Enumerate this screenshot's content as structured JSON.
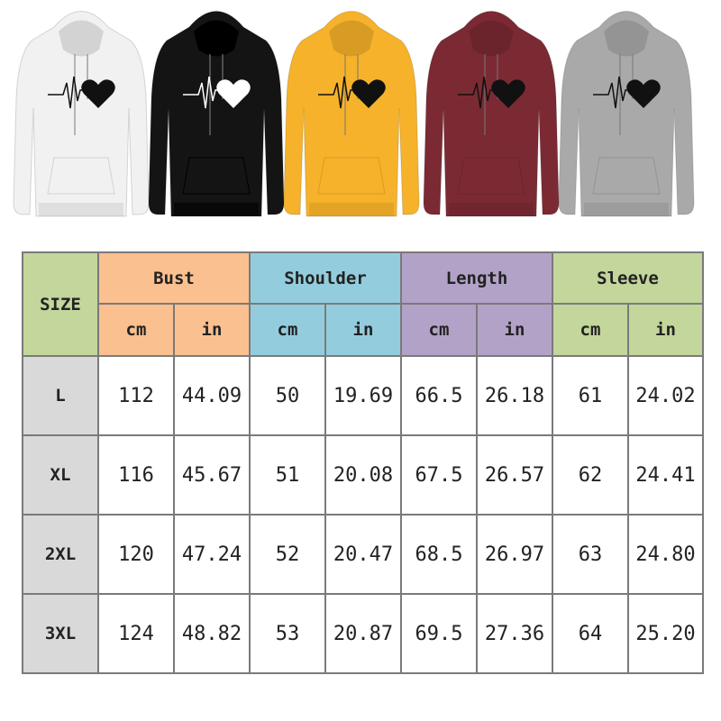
{
  "product_colors": [
    {
      "name": "white",
      "hex": "#f1f1f1",
      "print": "#111111"
    },
    {
      "name": "black",
      "hex": "#141414",
      "print": "#ffffff"
    },
    {
      "name": "yellow",
      "hex": "#f6b22a",
      "print": "#111111"
    },
    {
      "name": "wine-red",
      "hex": "#7b2a33",
      "print": "#111111"
    },
    {
      "name": "gray",
      "hex": "#a9a9a9",
      "print": "#111111"
    }
  ],
  "size_chart": {
    "size_header": "SIZE",
    "groups": [
      {
        "label": "Bust",
        "color": "#fac090"
      },
      {
        "label": "Shoulder",
        "color": "#93cddd"
      },
      {
        "label": "Length",
        "color": "#b3a2c7"
      },
      {
        "label": "Sleeve",
        "color": "#c3d69b"
      }
    ],
    "units": [
      "cm",
      "in"
    ],
    "size_header_color": "#c3d69b",
    "size_cell_color": "#d9d9d9",
    "rows": [
      {
        "size": "L",
        "values": [
          "112",
          "44.09",
          "50",
          "19.69",
          "66.5",
          "26.18",
          "61",
          "24.02"
        ]
      },
      {
        "size": "XL",
        "values": [
          "116",
          "45.67",
          "51",
          "20.08",
          "67.5",
          "26.57",
          "62",
          "24.41"
        ]
      },
      {
        "size": "2XL",
        "values": [
          "120",
          "47.24",
          "52",
          "20.47",
          "68.5",
          "26.97",
          "63",
          "24.80"
        ]
      },
      {
        "size": "3XL",
        "values": [
          "124",
          "48.82",
          "53",
          "20.87",
          "69.5",
          "27.36",
          "64",
          "25.20"
        ]
      }
    ]
  }
}
